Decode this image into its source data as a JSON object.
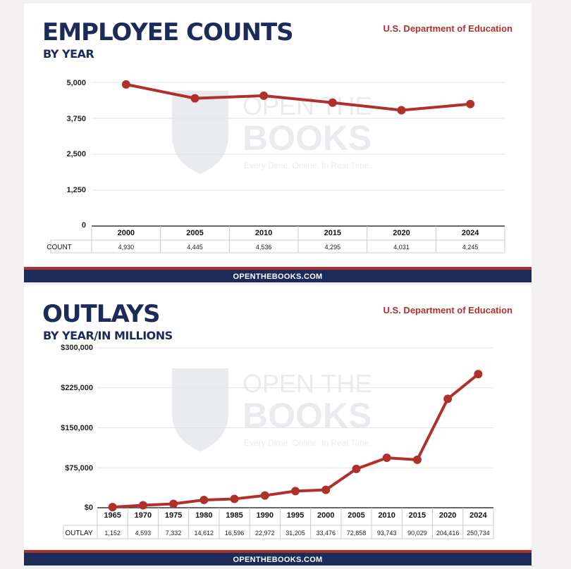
{
  "charts": [
    {
      "id": "employees",
      "title": "EMPLOYEE COUNTS",
      "subtitle": "BY YEAR",
      "source": "U.S. Department of Education",
      "footer": "OPENTHEBOOKS.COM",
      "row_label": "COUNT",
      "y_tick_labels": [
        "5,000",
        "3,750",
        "2,500",
        "1,250",
        "0"
      ]
    },
    {
      "id": "outlays",
      "title": "OUTLAYS",
      "subtitle": "BY YEAR/IN MILLIONS",
      "source": "U.S. Department of Education",
      "footer": "OPENTHEBOOKS.COM",
      "row_label": "OUTLAY",
      "y_tick_labels": [
        "$300,000",
        "$225,000",
        "$150,000",
        "$75,000",
        "$0"
      ]
    }
  ],
  "watermark": {
    "line1": "OPEN THE",
    "line2": "BOOKS",
    "tagline": "Every Dime. Online. In Real Time."
  },
  "colors": {
    "navy": "#1b2b5a",
    "red": "#b0302c",
    "line": "#b0302c"
  },
  "chart_data": [
    {
      "type": "line",
      "title": "EMPLOYEE COUNTS",
      "subtitle": "BY YEAR",
      "categories": [
        "2000",
        "2005",
        "2010",
        "2015",
        "2020",
        "2024"
      ],
      "values": [
        4930,
        4445,
        4536,
        4295,
        4031,
        4245
      ],
      "value_labels": [
        "4,930",
        "4,445",
        "4,536",
        "4,295",
        "4,031",
        "4,245"
      ],
      "ylim": [
        0,
        5000
      ],
      "yticks": [
        0,
        1250,
        2500,
        3750,
        5000
      ],
      "grid": true
    },
    {
      "type": "line",
      "title": "OUTLAYS",
      "subtitle": "BY YEAR/IN MILLIONS",
      "categories": [
        "1965",
        "1970",
        "1975",
        "1980",
        "1985",
        "1990",
        "1995",
        "2000",
        "2005",
        "2010",
        "2015",
        "2020",
        "2024"
      ],
      "values": [
        1152,
        4593,
        7332,
        14612,
        16596,
        22972,
        31205,
        33476,
        72858,
        93743,
        90029,
        204416,
        250734
      ],
      "value_labels": [
        "1,152",
        "4,593",
        "7,332",
        "14,612",
        "16,596",
        "22,972",
        "31,205",
        "33,476",
        "72,858",
        "93,743",
        "90,029",
        "204,416",
        "250,734"
      ],
      "ylim": [
        0,
        300000
      ],
      "yticks": [
        0,
        75000,
        150000,
        225000,
        300000
      ],
      "grid": true
    }
  ]
}
